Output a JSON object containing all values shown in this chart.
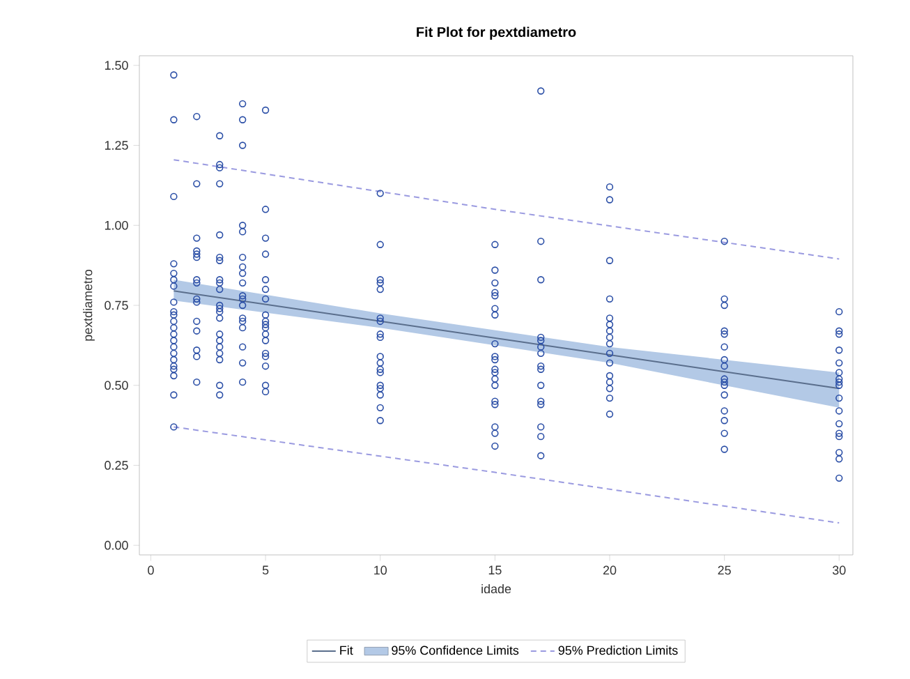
{
  "chart_data": {
    "type": "scatter",
    "title": "Fit Plot for pextdiametro",
    "xlabel": "idade",
    "ylabel": "pextdiametro",
    "xlim": [
      -0.5,
      30.6
    ],
    "ylim": [
      -0.03,
      1.53
    ],
    "xticks": [
      0,
      5,
      10,
      15,
      20,
      25,
      30
    ],
    "yticks": [
      {
        "value": 0,
        "label": "0.00"
      },
      {
        "value": 0.25,
        "label": "0.25"
      },
      {
        "value": 0.5,
        "label": "0.50"
      },
      {
        "value": 0.75,
        "label": "0.75"
      },
      {
        "value": 1,
        "label": "1.00"
      },
      {
        "value": 1.25,
        "label": "1.25"
      },
      {
        "value": 1.5,
        "label": "1.50"
      }
    ],
    "grid": false,
    "legend": "bottom",
    "series": [
      {
        "type": "scatter",
        "marker": "circle",
        "color": "#2a4ea6",
        "x": [
          1,
          1,
          1,
          1,
          1,
          1,
          1,
          1,
          1,
          1,
          1,
          1,
          1,
          1,
          1,
          1,
          1,
          1,
          1,
          1,
          1,
          1,
          2,
          2,
          2,
          2,
          2,
          2,
          2,
          2,
          2,
          2,
          2,
          2,
          2,
          2,
          2,
          3,
          3,
          3,
          3,
          3,
          3,
          3,
          3,
          3,
          3,
          3,
          3,
          3,
          3,
          3,
          3,
          3,
          3,
          3,
          3,
          3,
          4,
          4,
          4,
          4,
          4,
          4,
          4,
          4,
          4,
          4,
          4,
          4,
          4,
          4,
          4,
          4,
          4,
          4,
          5,
          5,
          5,
          5,
          5,
          5,
          5,
          5,
          5,
          5,
          5,
          5,
          5,
          5,
          5,
          5,
          5,
          5,
          10,
          10,
          10,
          10,
          10,
          10,
          10,
          10,
          10,
          10,
          10,
          10,
          10,
          10,
          10,
          10,
          10,
          10,
          15,
          15,
          15,
          15,
          15,
          15,
          15,
          15,
          15,
          15,
          15,
          15,
          15,
          15,
          15,
          15,
          15,
          15,
          15,
          17,
          17,
          17,
          17,
          17,
          17,
          17,
          17,
          17,
          17,
          17,
          17,
          17,
          17,
          17,
          20,
          20,
          20,
          20,
          20,
          20,
          20,
          20,
          20,
          20,
          20,
          20,
          20,
          20,
          20,
          20,
          25,
          25,
          25,
          25,
          25,
          25,
          25,
          25,
          25,
          25,
          25,
          25,
          25,
          25,
          25,
          25,
          30,
          30,
          30,
          30,
          30,
          30,
          30,
          30,
          30,
          30,
          30,
          30,
          30,
          30,
          30,
          30,
          30
        ],
        "values": [
          1.47,
          1.33,
          1.09,
          0.88,
          0.85,
          0.83,
          0.81,
          0.76,
          0.73,
          0.72,
          0.7,
          0.68,
          0.66,
          0.64,
          0.62,
          0.6,
          0.58,
          0.56,
          0.55,
          0.53,
          0.47,
          0.37,
          1.34,
          1.13,
          0.96,
          0.92,
          0.91,
          0.9,
          0.83,
          0.82,
          0.77,
          0.76,
          0.7,
          0.67,
          0.61,
          0.59,
          0.51,
          1.28,
          1.19,
          1.18,
          1.13,
          0.97,
          0.9,
          0.89,
          0.83,
          0.82,
          0.8,
          0.75,
          0.74,
          0.73,
          0.71,
          0.66,
          0.64,
          0.62,
          0.6,
          0.58,
          0.5,
          0.47,
          1.38,
          1.33,
          1.25,
          1.0,
          0.98,
          0.9,
          0.87,
          0.85,
          0.82,
          0.78,
          0.77,
          0.75,
          0.71,
          0.7,
          0.68,
          0.62,
          0.57,
          0.51,
          1.36,
          1.05,
          0.96,
          0.91,
          0.83,
          0.8,
          0.77,
          0.72,
          0.7,
          0.69,
          0.68,
          0.66,
          0.64,
          0.6,
          0.59,
          0.56,
          0.5,
          0.48,
          1.1,
          0.94,
          0.83,
          0.82,
          0.8,
          0.71,
          0.7,
          0.66,
          0.65,
          0.59,
          0.57,
          0.55,
          0.54,
          0.5,
          0.49,
          0.47,
          0.43,
          0.39,
          0.94,
          0.86,
          0.82,
          0.79,
          0.78,
          0.74,
          0.72,
          0.63,
          0.59,
          0.58,
          0.55,
          0.54,
          0.52,
          0.5,
          0.45,
          0.44,
          0.37,
          0.35,
          0.31,
          1.42,
          0.95,
          0.83,
          0.65,
          0.64,
          0.62,
          0.6,
          0.56,
          0.55,
          0.5,
          0.45,
          0.44,
          0.37,
          0.34,
          0.28,
          1.12,
          1.08,
          0.89,
          0.77,
          0.71,
          0.69,
          0.67,
          0.65,
          0.63,
          0.6,
          0.57,
          0.53,
          0.51,
          0.49,
          0.46,
          0.41,
          0.95,
          0.77,
          0.75,
          0.67,
          0.66,
          0.62,
          0.58,
          0.56,
          0.52,
          0.51,
          0.5,
          0.47,
          0.42,
          0.39,
          0.35,
          0.3,
          0.73,
          0.67,
          0.66,
          0.61,
          0.57,
          0.54,
          0.52,
          0.51,
          0.5,
          0.46,
          0.42,
          0.38,
          0.35,
          0.34,
          0.29,
          0.27,
          0.21
        ]
      },
      {
        "type": "line",
        "name": "Fit",
        "color": "#5a6e8c",
        "line_style": "solid",
        "x": [
          1,
          30
        ],
        "values": [
          0.795,
          0.49
        ]
      },
      {
        "type": "area",
        "name": "95% Confidence Limits",
        "color": "#b3c9e6",
        "x": [
          1,
          10,
          20,
          30
        ],
        "values": [
          null,
          null,
          null,
          null
        ],
        "lower": [
          0.765,
          0.68,
          0.57,
          0.43
        ],
        "upper": [
          0.83,
          0.725,
          0.62,
          0.54
        ]
      },
      {
        "type": "line",
        "name": "95% Prediction Limits",
        "color": "#9a9ae0",
        "line_style": "dashed",
        "x": [
          1,
          15,
          30
        ],
        "values": [
          1.205,
          1.05,
          0.895
        ]
      },
      {
        "type": "line",
        "color": "#9a9ae0",
        "line_style": "dashed",
        "x": [
          1,
          15,
          30
        ],
        "values": [
          0.37,
          0.228,
          0.07
        ]
      }
    ]
  }
}
